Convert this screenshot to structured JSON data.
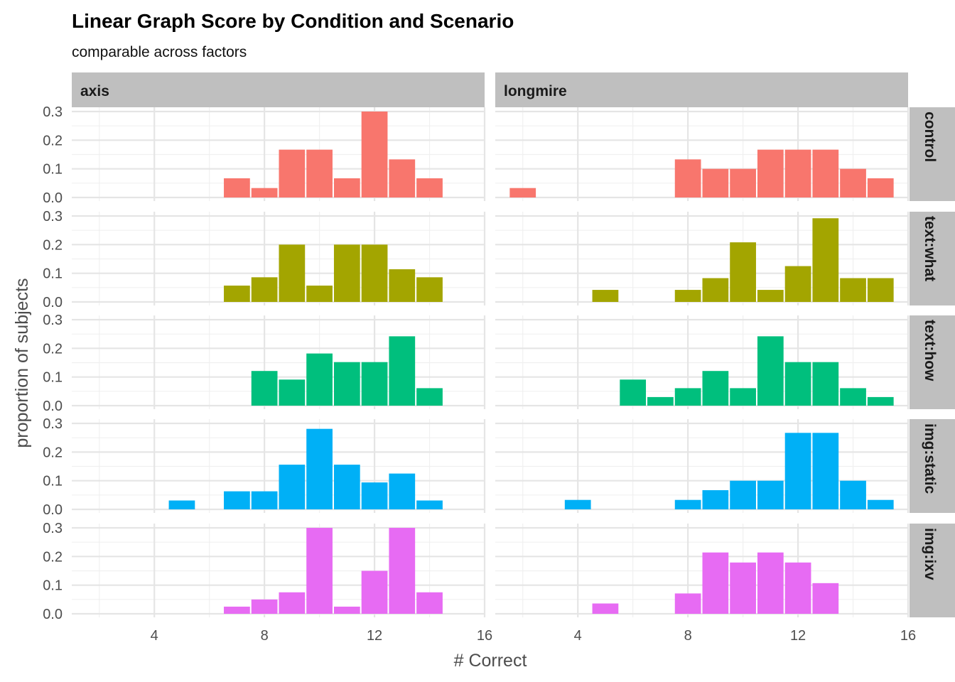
{
  "chart_data": {
    "type": "bar",
    "title": "Linear Graph Score by Condition and Scenario",
    "subtitle": "comparable across factors",
    "xlabel": "# Correct",
    "ylabel": "proportion of subjects",
    "xlim": [
      1,
      16
    ],
    "ylim": [
      0,
      0.3
    ],
    "x_ticks": [
      4,
      8,
      12,
      16
    ],
    "y_ticks": [
      0.0,
      0.1,
      0.2,
      0.3
    ],
    "y_tick_labels": [
      "0.0",
      "0.1",
      "0.2",
      "0.3"
    ],
    "grid": true,
    "legend": "none",
    "columns": [
      "axis",
      "longmire"
    ],
    "rows": [
      "control",
      "text:what",
      "text:how",
      "img:static",
      "img:ixv"
    ],
    "row_colors": [
      "#F8766D",
      "#A3A500",
      "#00BF7D",
      "#00B0F6",
      "#E76BF3"
    ],
    "panels": {
      "axis": {
        "control": {
          "x": [
            7,
            8,
            9,
            10,
            11,
            12,
            13,
            14
          ],
          "values": [
            0.067,
            0.033,
            0.167,
            0.167,
            0.067,
            0.3,
            0.133,
            0.067
          ]
        },
        "text:what": {
          "x": [
            7,
            8,
            9,
            10,
            11,
            12,
            13,
            14
          ],
          "values": [
            0.057,
            0.086,
            0.2,
            0.057,
            0.2,
            0.2,
            0.114,
            0.086
          ]
        },
        "text:how": {
          "x": [
            8,
            9,
            10,
            11,
            12,
            13,
            14
          ],
          "values": [
            0.121,
            0.091,
            0.182,
            0.152,
            0.152,
            0.242,
            0.061
          ]
        },
        "img:static": {
          "x": [
            5,
            7,
            8,
            9,
            10,
            11,
            12,
            13,
            14
          ],
          "values": [
            0.031,
            0.063,
            0.063,
            0.156,
            0.281,
            0.156,
            0.094,
            0.125,
            0.031
          ]
        },
        "img:ixv": {
          "x": [
            7,
            8,
            9,
            10,
            11,
            12,
            13,
            14
          ],
          "values": [
            0.025,
            0.05,
            0.075,
            0.3,
            0.025,
            0.15,
            0.3,
            0.075
          ]
        }
      },
      "longmire": {
        "control": {
          "x": [
            2,
            8,
            9,
            10,
            11,
            12,
            13,
            14,
            15
          ],
          "values": [
            0.033,
            0.133,
            0.1,
            0.1,
            0.167,
            0.167,
            0.167,
            0.1,
            0.067
          ]
        },
        "text:what": {
          "x": [
            5,
            8,
            9,
            10,
            11,
            12,
            13,
            14,
            15
          ],
          "values": [
            0.042,
            0.042,
            0.083,
            0.208,
            0.042,
            0.125,
            0.292,
            0.083,
            0.083
          ]
        },
        "text:how": {
          "x": [
            6,
            7,
            8,
            9,
            10,
            11,
            12,
            13,
            14,
            15
          ],
          "values": [
            0.091,
            0.03,
            0.061,
            0.121,
            0.061,
            0.242,
            0.152,
            0.152,
            0.061,
            0.03
          ]
        },
        "img:static": {
          "x": [
            4,
            8,
            9,
            10,
            11,
            12,
            13,
            14,
            15
          ],
          "values": [
            0.033,
            0.033,
            0.067,
            0.1,
            0.1,
            0.267,
            0.267,
            0.1,
            0.033
          ]
        },
        "img:ixv": {
          "x": [
            5,
            8,
            9,
            10,
            11,
            12,
            13
          ],
          "values": [
            0.036,
            0.071,
            0.214,
            0.179,
            0.214,
            0.179,
            0.107
          ]
        }
      }
    }
  }
}
